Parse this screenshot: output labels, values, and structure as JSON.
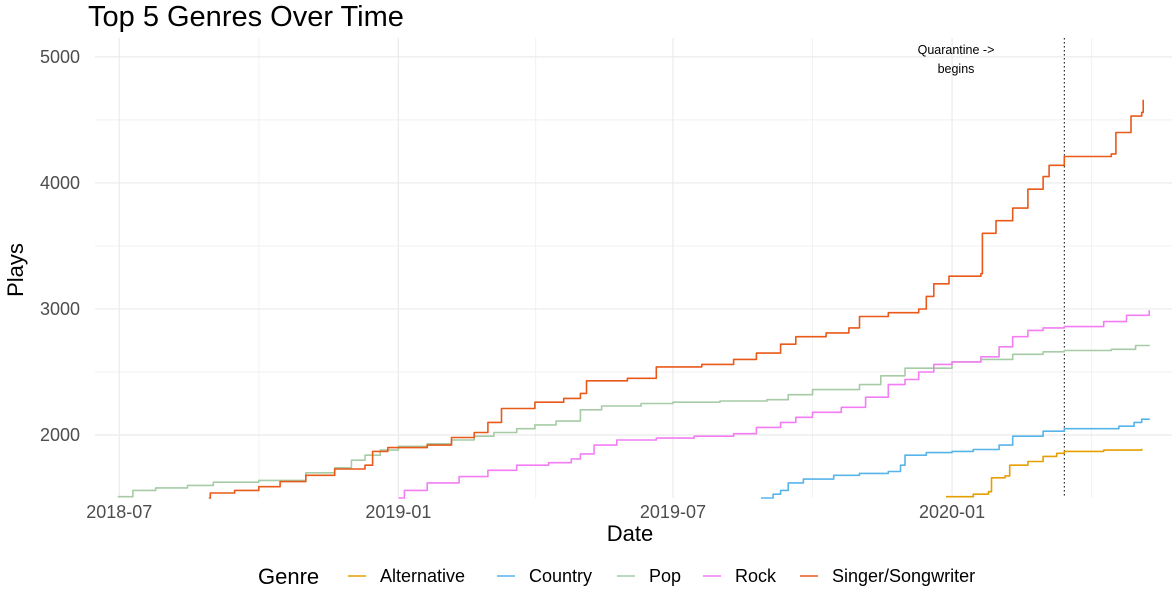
{
  "chart_data": {
    "type": "line",
    "title": "Top 5 Genres Over Time",
    "xlabel": "Date",
    "ylabel": "Plays",
    "xlim": [
      "2018-06-15",
      "2020-05-25"
    ],
    "ylim": [
      1500,
      5150
    ],
    "x_ticks": [
      "2018-07-01",
      "2019-01-01",
      "2019-07-01",
      "2020-01-01"
    ],
    "x_tick_labels": [
      "2018-07",
      "2019-01",
      "2019-07",
      "2020-01"
    ],
    "y_ticks": [
      2000,
      3000,
      4000,
      5000
    ],
    "y_tick_labels": [
      "2000",
      "3000",
      "4000",
      "5000"
    ],
    "grid": true,
    "legend": {
      "title": "Genre",
      "position": "bottom",
      "entries": [
        "Alternative",
        "Country",
        "Pop",
        "Rock",
        "Singer/Songwriter"
      ]
    },
    "reference_line": {
      "x": "2020-03-15",
      "style": "dotted"
    },
    "annotation": {
      "lines": [
        "Quarantine ->",
        "begins"
      ]
    },
    "series": [
      {
        "name": "Alternative",
        "color": "#E69F00",
        "points": [
          [
            "2019-12-28",
            1510
          ],
          [
            "2020-01-15",
            1530
          ],
          [
            "2020-01-25",
            1550
          ],
          [
            "2020-01-27",
            1660
          ],
          [
            "2020-02-05",
            1675
          ],
          [
            "2020-02-08",
            1760
          ],
          [
            "2020-02-20",
            1790
          ],
          [
            "2020-03-01",
            1830
          ],
          [
            "2020-03-10",
            1855
          ],
          [
            "2020-03-15",
            1870
          ],
          [
            "2020-04-10",
            1880
          ],
          [
            "2020-05-05",
            1890
          ]
        ]
      },
      {
        "name": "Country",
        "color": "#56B4E9",
        "points": [
          [
            "2019-08-28",
            1500
          ],
          [
            "2019-09-05",
            1530
          ],
          [
            "2019-09-10",
            1560
          ],
          [
            "2019-09-15",
            1620
          ],
          [
            "2019-09-25",
            1650
          ],
          [
            "2019-10-15",
            1680
          ],
          [
            "2019-11-01",
            1695
          ],
          [
            "2019-11-20",
            1710
          ],
          [
            "2019-11-28",
            1760
          ],
          [
            "2019-12-01",
            1840
          ],
          [
            "2019-12-15",
            1860
          ],
          [
            "2020-01-01",
            1870
          ],
          [
            "2020-01-15",
            1885
          ],
          [
            "2020-02-01",
            1920
          ],
          [
            "2020-02-10",
            1990
          ],
          [
            "2020-03-01",
            2030
          ],
          [
            "2020-03-15",
            2050
          ],
          [
            "2020-04-20",
            2070
          ],
          [
            "2020-04-30",
            2100
          ],
          [
            "2020-05-05",
            2125
          ],
          [
            "2020-05-10",
            2130
          ]
        ]
      },
      {
        "name": "Pop",
        "color": "#A6CBA6",
        "points": [
          [
            "2018-06-30",
            1510
          ],
          [
            "2018-07-10",
            1560
          ],
          [
            "2018-07-25",
            1580
          ],
          [
            "2018-08-15",
            1600
          ],
          [
            "2018-09-01",
            1625
          ],
          [
            "2018-10-01",
            1640
          ],
          [
            "2018-11-01",
            1700
          ],
          [
            "2018-11-20",
            1740
          ],
          [
            "2018-12-01",
            1800
          ],
          [
            "2018-12-10",
            1840
          ],
          [
            "2018-12-20",
            1880
          ],
          [
            "2019-01-01",
            1910
          ],
          [
            "2019-01-20",
            1930
          ],
          [
            "2019-02-05",
            1960
          ],
          [
            "2019-02-20",
            1990
          ],
          [
            "2019-03-05",
            2020
          ],
          [
            "2019-03-20",
            2050
          ],
          [
            "2019-04-01",
            2080
          ],
          [
            "2019-04-15",
            2110
          ],
          [
            "2019-05-01",
            2200
          ],
          [
            "2019-05-15",
            2230
          ],
          [
            "2019-06-10",
            2250
          ],
          [
            "2019-07-01",
            2260
          ],
          [
            "2019-08-01",
            2270
          ],
          [
            "2019-09-01",
            2280
          ],
          [
            "2019-09-15",
            2320
          ],
          [
            "2019-10-01",
            2360
          ],
          [
            "2019-11-01",
            2400
          ],
          [
            "2019-11-15",
            2470
          ],
          [
            "2019-12-01",
            2530
          ],
          [
            "2020-01-01",
            2580
          ],
          [
            "2020-01-20",
            2600
          ],
          [
            "2020-02-10",
            2640
          ],
          [
            "2020-03-01",
            2660
          ],
          [
            "2020-03-15",
            2670
          ],
          [
            "2020-04-15",
            2680
          ],
          [
            "2020-05-01",
            2710
          ],
          [
            "2020-05-10",
            2715
          ]
        ]
      },
      {
        "name": "Rock",
        "color": "#F37EF3",
        "points": [
          [
            "2019-01-01",
            1500
          ],
          [
            "2019-01-05",
            1560
          ],
          [
            "2019-01-20",
            1620
          ],
          [
            "2019-02-10",
            1670
          ],
          [
            "2019-03-01",
            1720
          ],
          [
            "2019-03-20",
            1760
          ],
          [
            "2019-04-10",
            1780
          ],
          [
            "2019-04-25",
            1810
          ],
          [
            "2019-05-01",
            1850
          ],
          [
            "2019-05-10",
            1920
          ],
          [
            "2019-05-25",
            1960
          ],
          [
            "2019-06-20",
            1975
          ],
          [
            "2019-07-15",
            1990
          ],
          [
            "2019-08-10",
            2010
          ],
          [
            "2019-08-25",
            2060
          ],
          [
            "2019-09-10",
            2100
          ],
          [
            "2019-09-20",
            2140
          ],
          [
            "2019-10-01",
            2180
          ],
          [
            "2019-10-20",
            2220
          ],
          [
            "2019-11-05",
            2300
          ],
          [
            "2019-11-20",
            2400
          ],
          [
            "2019-12-01",
            2440
          ],
          [
            "2019-12-10",
            2500
          ],
          [
            "2019-12-20",
            2560
          ],
          [
            "2020-01-01",
            2580
          ],
          [
            "2020-01-20",
            2620
          ],
          [
            "2020-02-01",
            2700
          ],
          [
            "2020-02-10",
            2780
          ],
          [
            "2020-02-20",
            2830
          ],
          [
            "2020-03-01",
            2850
          ],
          [
            "2020-03-15",
            2860
          ],
          [
            "2020-04-10",
            2900
          ],
          [
            "2020-04-25",
            2950
          ],
          [
            "2020-05-10",
            2990
          ]
        ]
      },
      {
        "name": "Singer/Songwriter",
        "color": "#E8591A",
        "points": [
          [
            "2018-08-29",
            1500
          ],
          [
            "2018-08-30",
            1540
          ],
          [
            "2018-09-15",
            1560
          ],
          [
            "2018-10-01",
            1590
          ],
          [
            "2018-10-15",
            1630
          ],
          [
            "2018-11-01",
            1680
          ],
          [
            "2018-11-20",
            1730
          ],
          [
            "2018-12-10",
            1760
          ],
          [
            "2018-12-15",
            1870
          ],
          [
            "2018-12-25",
            1900
          ],
          [
            "2019-01-20",
            1920
          ],
          [
            "2019-02-05",
            1980
          ],
          [
            "2019-02-20",
            2020
          ],
          [
            "2019-03-01",
            2100
          ],
          [
            "2019-03-10",
            2210
          ],
          [
            "2019-04-01",
            2260
          ],
          [
            "2019-04-20",
            2290
          ],
          [
            "2019-05-01",
            2330
          ],
          [
            "2019-05-05",
            2430
          ],
          [
            "2019-06-01",
            2450
          ],
          [
            "2019-06-20",
            2540
          ],
          [
            "2019-07-20",
            2560
          ],
          [
            "2019-08-10",
            2600
          ],
          [
            "2019-08-25",
            2650
          ],
          [
            "2019-09-10",
            2720
          ],
          [
            "2019-09-20",
            2780
          ],
          [
            "2019-10-10",
            2810
          ],
          [
            "2019-10-25",
            2850
          ],
          [
            "2019-11-01",
            2940
          ],
          [
            "2019-11-20",
            2970
          ],
          [
            "2019-12-10",
            3000
          ],
          [
            "2019-12-15",
            3100
          ],
          [
            "2019-12-20",
            3200
          ],
          [
            "2019-12-30",
            3260
          ],
          [
            "2020-01-20",
            3280
          ],
          [
            "2020-01-21",
            3600
          ],
          [
            "2020-01-30",
            3700
          ],
          [
            "2020-02-10",
            3800
          ],
          [
            "2020-02-20",
            3950
          ],
          [
            "2020-03-01",
            4050
          ],
          [
            "2020-03-05",
            4140
          ],
          [
            "2020-03-15",
            4210
          ],
          [
            "2020-04-15",
            4230
          ],
          [
            "2020-04-18",
            4400
          ],
          [
            "2020-04-28",
            4530
          ],
          [
            "2020-05-05",
            4560
          ],
          [
            "2020-05-06",
            4660
          ]
        ]
      }
    ]
  }
}
